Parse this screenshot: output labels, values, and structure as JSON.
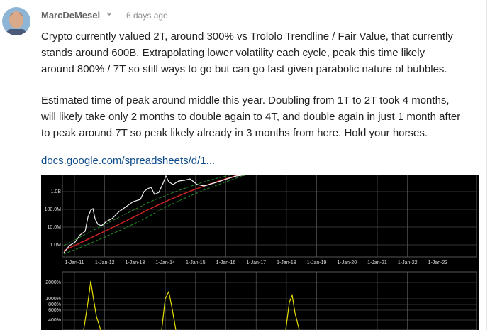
{
  "post": {
    "author": "MarcDeMesel",
    "time": "6 days ago",
    "paragraphs": [
      [
        "Crypto currently valued 2T, around 300% vs Trololo Trendline / Fair Value, that currently",
        "stands around 600B. Extrapolating lower volatility each cycle, peak this time likely",
        "around 800% / 7T so still ways to go but can go fast given parabolic nature of bubbles."
      ],
      [
        "Estimated time of peak around middle this year. Doubling from 1T to 2T took 4 months,",
        "will likely take only 2 months to double again to 4T, and double again in just 1 month after",
        "to peak around 7T so peak likely already in 3 months from here. Hold your horses."
      ]
    ],
    "link": "docs.google.com/spreadsheets/d/1..."
  },
  "embed": {
    "price_axis_labels": [
      "1.0B",
      "100.0M",
      "10.0M",
      "1.0M"
    ],
    "date_labels": [
      "1-Jan-11",
      "1-Jan-12",
      "1-Jan-13",
      "1-Jan-14",
      "1-Jan-15",
      "1-Jan-16",
      "1-Jan-17",
      "1-Jan-18",
      "1-Jan-19",
      "1-Jan-20",
      "1-Jan-21",
      "1-Jan-22",
      "1-Jan-23"
    ],
    "percent_labels": [
      "2000%",
      "1000%",
      "800%",
      "600%",
      "400%"
    ]
  }
}
